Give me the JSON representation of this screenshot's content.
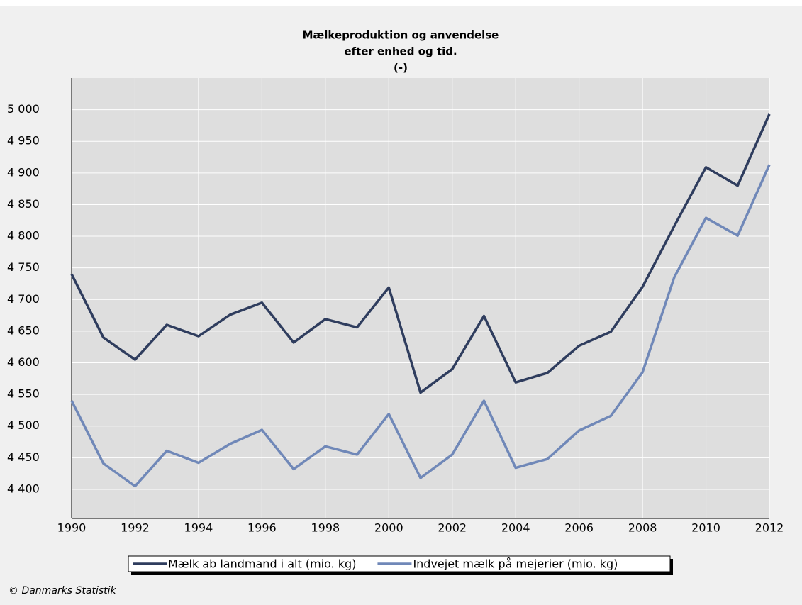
{
  "chart_data": {
    "type": "line",
    "title": [
      "Mælkeproduktion og anvendelse",
      "efter enhed og tid.",
      "(-)"
    ],
    "x": [
      1990,
      1991,
      1992,
      1993,
      1994,
      1995,
      1996,
      1997,
      1998,
      1999,
      2000,
      2001,
      2002,
      2003,
      2004,
      2005,
      2006,
      2007,
      2008,
      2009,
      2010,
      2011,
      2012
    ],
    "series": [
      {
        "name": "Mælk ab landmand i alt (mio. kg)",
        "color": "#2f3d5e",
        "values": [
          4740,
          4640,
          4605,
          4660,
          4642,
          4676,
          4695,
          4632,
          4669,
          4656,
          4719,
          4553,
          4590,
          4674,
          4569,
          4584,
          4627,
          4649,
          4720,
          4816,
          4909,
          4880,
          4993
        ]
      },
      {
        "name": "Indvejet mælk på mejerier (mio. kg)",
        "color": "#7088b8",
        "values": [
          4540,
          4441,
          4405,
          4461,
          4442,
          4472,
          4494,
          4432,
          4468,
          4455,
          4519,
          4418,
          4455,
          4540,
          4434,
          4448,
          4493,
          4516,
          4585,
          4735,
          4829,
          4801,
          4913
        ]
      }
    ],
    "xlim": [
      1990,
      2012
    ],
    "xticks": [
      1990,
      1992,
      1994,
      1996,
      1998,
      2000,
      2002,
      2004,
      2006,
      2008,
      2010,
      2012
    ],
    "ylim": [
      4354,
      5050
    ],
    "yticks": [
      {
        "value": 4400,
        "label": "4 400"
      },
      {
        "value": 4450,
        "label": "4 450"
      },
      {
        "value": 4500,
        "label": "4 500"
      },
      {
        "value": 4550,
        "label": "4 550"
      },
      {
        "value": 4600,
        "label": "4 600"
      },
      {
        "value": 4650,
        "label": "4 650"
      },
      {
        "value": 4700,
        "label": "4 700"
      },
      {
        "value": 4750,
        "label": "4 750"
      },
      {
        "value": 4800,
        "label": "4 800"
      },
      {
        "value": 4850,
        "label": "4 850"
      },
      {
        "value": 4900,
        "label": "4 900"
      },
      {
        "value": 4950,
        "label": "4 950"
      },
      {
        "value": 5000,
        "label": "5 000"
      }
    ],
    "grid": true,
    "legend": "bottom",
    "source": "© Danmarks Statistik"
  }
}
